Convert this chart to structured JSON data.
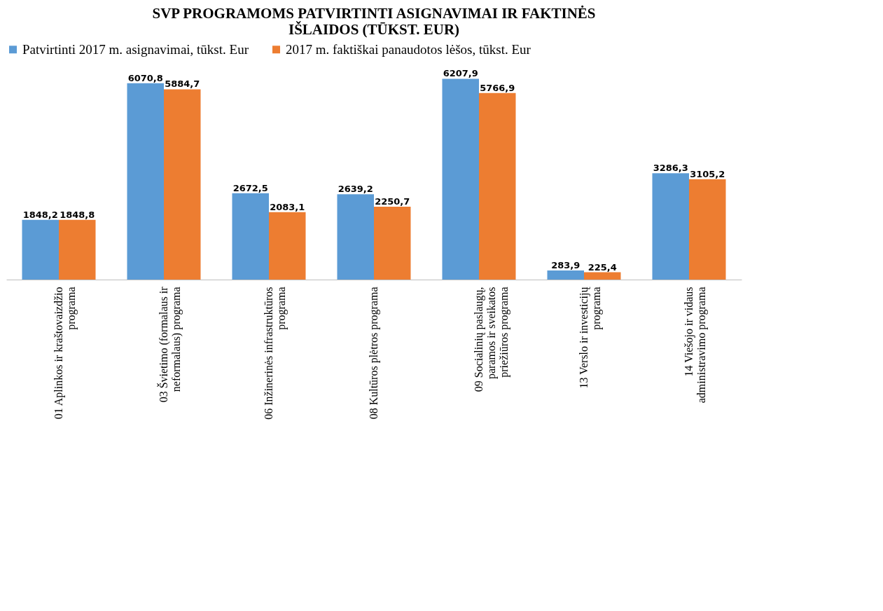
{
  "chart_data": {
    "type": "bar",
    "title": "SVP PROGRAMOMS PATVIRTINTI ASIGNAVIMAI IR FAKTINĖS IŠLAIDOS (TŪKST. EUR)",
    "categories": [
      "01 Aplinkos ir kraštovaizdžio programa",
      "03 Švietimo (formalaus ir neformalaus) programa",
      "06 Inžinerinės infrastruktūros programa",
      "08 Kultūros plėtros programa",
      "09 Socialinių paslaugų, paramos ir sveikatos priežiūros programa",
      "13 Verslo ir investicijų programa",
      "14 Viešojo ir vidaus administravimo programa"
    ],
    "series": [
      {
        "name": "Patvirtinti 2017 m. asignavimai, tūkst. Eur",
        "color": "#5b9bd5",
        "values": [
          1848.2,
          6070.8,
          2672.5,
          2639.2,
          6207.9,
          283.9,
          3286.3
        ],
        "value_labels": [
          "1848,2",
          "6070,8",
          "2672,5",
          "2639,2",
          "6207,9",
          "283,9",
          "3286,3"
        ]
      },
      {
        "name": "2017 m. faktiškai panaudotos lėšos, tūkst. Eur",
        "color": "#ed7d31",
        "values": [
          1848.8,
          5884.7,
          2083.1,
          2250.7,
          5766.9,
          225.4,
          3105.2
        ],
        "value_labels": [
          "1848,8",
          "5884,7",
          "2083,1",
          "2250,7",
          "5766,9",
          "225,4",
          "3105,2"
        ]
      }
    ],
    "legend": "top"
  }
}
